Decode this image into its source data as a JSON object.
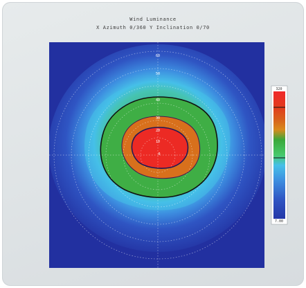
{
  "title": "Wind Luminance",
  "subtitle": "X Azimuth 0/360  Y Inclination 0/70",
  "chart_data": {
    "type": "heatmap",
    "title": "Wind Luminance",
    "subtitle": "X Azimuth 0/360  Y Inclination 0/70",
    "polar_ring_labels": [
      "60",
      "50",
      "40",
      "30",
      "20",
      "10",
      "0"
    ],
    "colorbar": {
      "max_label": "320",
      "min_label": "7.00",
      "colors": [
        "#2437a8",
        "#2f55c3",
        "#3d8ee0",
        "#46c0e8",
        "#47c96b",
        "#3aa83a",
        "#d98a1c",
        "#d8601c",
        "#e23a1e",
        "#f0282a"
      ]
    },
    "contour_levels": [
      "outer",
      "middle",
      "inner"
    ],
    "background_color": "#2230a0"
  }
}
